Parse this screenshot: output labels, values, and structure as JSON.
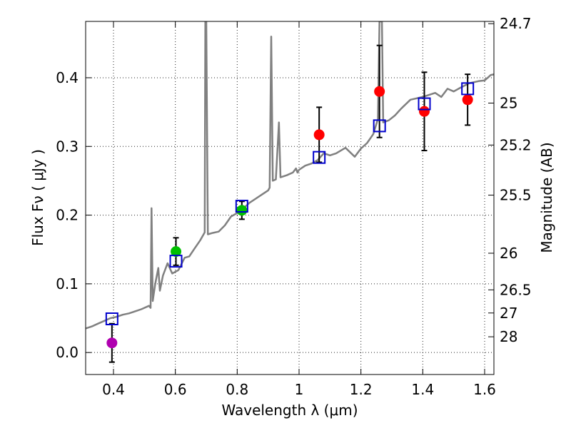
{
  "chart_data": {
    "type": "scatter",
    "title": "",
    "xlabel": "Wavelength  λ (μm)",
    "ylabel": "Flux  Fν  ( μJy )",
    "y2label": "Magnitude (AB)",
    "xlim": [
      0.31,
      1.63
    ],
    "ylim": [
      -0.032,
      0.482
    ],
    "grid": true,
    "colors": {
      "spectrum": "#808080",
      "model": "#0000cc",
      "errorbar": "#000000",
      "violet": "#b000b0",
      "green": "#00c000",
      "red": "#ff0000"
    },
    "xticks": [
      {
        "value": 0.4,
        "label": "0.4"
      },
      {
        "value": 0.6,
        "label": "0.6"
      },
      {
        "value": 0.8,
        "label": "0.8"
      },
      {
        "value": 1.0,
        "label": "1"
      },
      {
        "value": 1.2,
        "label": "1.2"
      },
      {
        "value": 1.4,
        "label": "1.4"
      },
      {
        "value": 1.6,
        "label": "1.6"
      }
    ],
    "yticks": [
      {
        "value": 0.0,
        "label": "0.0"
      },
      {
        "value": 0.1,
        "label": "0.1"
      },
      {
        "value": 0.2,
        "label": "0.2"
      },
      {
        "value": 0.3,
        "label": "0.3"
      },
      {
        "value": 0.4,
        "label": "0.4"
      }
    ],
    "mag_ticks": [
      {
        "value": 24.7,
        "label": "24.7"
      },
      {
        "value": 25.0,
        "label": "25"
      },
      {
        "value": 25.2,
        "label": "25.2"
      },
      {
        "value": 25.5,
        "label": "25.5"
      },
      {
        "value": 26.0,
        "label": "26"
      },
      {
        "value": 26.5,
        "label": "26.5"
      },
      {
        "value": 27.0,
        "label": "27"
      },
      {
        "value": 28.0,
        "label": "28"
      }
    ],
    "observed": [
      {
        "x": 0.395,
        "y": 0.014,
        "err": 0.028,
        "color": "violet"
      },
      {
        "x": 0.602,
        "y": 0.147,
        "err": 0.02,
        "color": "green"
      },
      {
        "x": 0.815,
        "y": 0.207,
        "err": 0.013,
        "color": "green"
      },
      {
        "x": 1.065,
        "y": 0.317,
        "err": 0.04,
        "color": "red"
      },
      {
        "x": 1.26,
        "y": 0.38,
        "err": 0.067,
        "color": "red"
      },
      {
        "x": 1.405,
        "y": 0.351,
        "err": 0.057,
        "color": "red"
      },
      {
        "x": 1.545,
        "y": 0.368,
        "err": 0.037,
        "color": "red"
      }
    ],
    "model": [
      {
        "x": 0.395,
        "y": 0.049
      },
      {
        "x": 0.602,
        "y": 0.133
      },
      {
        "x": 0.815,
        "y": 0.213
      },
      {
        "x": 1.065,
        "y": 0.284
      },
      {
        "x": 1.26,
        "y": 0.33
      },
      {
        "x": 1.405,
        "y": 0.362
      },
      {
        "x": 1.545,
        "y": 0.384
      }
    ],
    "spectrum": [
      [
        0.31,
        0.035
      ],
      [
        0.33,
        0.038
      ],
      [
        0.35,
        0.042
      ],
      [
        0.37,
        0.046
      ],
      [
        0.39,
        0.05
      ],
      [
        0.41,
        0.052
      ],
      [
        0.43,
        0.055
      ],
      [
        0.45,
        0.057
      ],
      [
        0.47,
        0.06
      ],
      [
        0.49,
        0.063
      ],
      [
        0.515,
        0.068
      ],
      [
        0.52,
        0.065
      ],
      [
        0.523,
        0.21
      ],
      [
        0.527,
        0.075
      ],
      [
        0.535,
        0.1
      ],
      [
        0.545,
        0.123
      ],
      [
        0.55,
        0.09
      ],
      [
        0.56,
        0.112
      ],
      [
        0.575,
        0.13
      ],
      [
        0.59,
        0.115
      ],
      [
        0.61,
        0.12
      ],
      [
        0.63,
        0.138
      ],
      [
        0.645,
        0.14
      ],
      [
        0.66,
        0.15
      ],
      [
        0.68,
        0.163
      ],
      [
        0.695,
        0.175
      ],
      [
        0.697,
        0.482
      ],
      [
        0.7,
        0.482
      ],
      [
        0.705,
        0.172
      ],
      [
        0.72,
        0.174
      ],
      [
        0.74,
        0.176
      ],
      [
        0.76,
        0.185
      ],
      [
        0.78,
        0.198
      ],
      [
        0.8,
        0.203
      ],
      [
        0.82,
        0.21
      ],
      [
        0.84,
        0.218
      ],
      [
        0.86,
        0.224
      ],
      [
        0.88,
        0.23
      ],
      [
        0.9,
        0.236
      ],
      [
        0.905,
        0.24
      ],
      [
        0.91,
        0.46
      ],
      [
        0.915,
        0.25
      ],
      [
        0.925,
        0.252
      ],
      [
        0.935,
        0.335
      ],
      [
        0.94,
        0.255
      ],
      [
        0.96,
        0.258
      ],
      [
        0.98,
        0.262
      ],
      [
        0.99,
        0.268
      ],
      [
        0.995,
        0.262
      ],
      [
        1.0,
        0.266
      ],
      [
        1.02,
        0.272
      ],
      [
        1.04,
        0.275
      ],
      [
        1.06,
        0.28
      ],
      [
        1.08,
        0.29
      ],
      [
        1.1,
        0.287
      ],
      [
        1.12,
        0.29
      ],
      [
        1.15,
        0.298
      ],
      [
        1.18,
        0.285
      ],
      [
        1.2,
        0.297
      ],
      [
        1.22,
        0.305
      ],
      [
        1.24,
        0.318
      ],
      [
        1.255,
        0.34
      ],
      [
        1.26,
        0.482
      ],
      [
        1.268,
        0.482
      ],
      [
        1.272,
        0.335
      ],
      [
        1.29,
        0.338
      ],
      [
        1.31,
        0.345
      ],
      [
        1.33,
        0.355
      ],
      [
        1.36,
        0.368
      ],
      [
        1.4,
        0.372
      ],
      [
        1.44,
        0.378
      ],
      [
        1.46,
        0.372
      ],
      [
        1.48,
        0.384
      ],
      [
        1.5,
        0.38
      ],
      [
        1.52,
        0.385
      ],
      [
        1.55,
        0.392
      ],
      [
        1.58,
        0.395
      ],
      [
        1.6,
        0.396
      ],
      [
        1.62,
        0.404
      ],
      [
        1.63,
        0.405
      ]
    ]
  }
}
